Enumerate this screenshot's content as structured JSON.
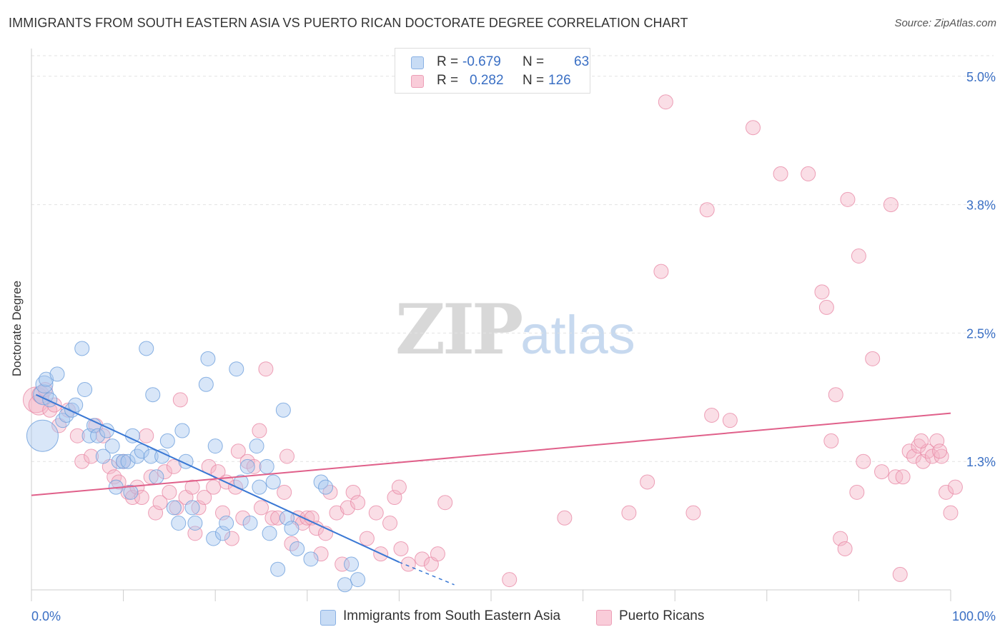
{
  "header": {
    "title": "IMMIGRANTS FROM SOUTH EASTERN ASIA VS PUERTO RICAN DOCTORATE DEGREE CORRELATION CHART",
    "source": "Source: ZipAtlas.com"
  },
  "watermark": {
    "zip": "ZIP",
    "atlas": "atlas"
  },
  "legend": {
    "rows": [
      {
        "r_label": "R =",
        "r_value": "-0.679",
        "n_label": "N =",
        "n_value": "63",
        "color": "#a9c8f0"
      },
      {
        "r_label": "R =",
        "r_value": "0.282",
        "n_label": "N =",
        "n_value": "126",
        "color": "#f5b6c8"
      }
    ]
  },
  "bottom_legend": {
    "series_a": "Immigrants from South Eastern Asia",
    "series_b": "Puerto Ricans"
  },
  "chart_data": {
    "type": "scatter",
    "ylabel": "Doctorate Degree",
    "xlim": [
      0,
      100
    ],
    "ylim": [
      0,
      5.2
    ],
    "x_tick_labels": [
      {
        "value": 0,
        "label": "0.0%"
      },
      {
        "value": 100,
        "label": "100.0%"
      }
    ],
    "y_tick_labels": [
      {
        "value": 1.25,
        "label": "1.3%"
      },
      {
        "value": 2.5,
        "label": "2.5%"
      },
      {
        "value": 3.75,
        "label": "3.8%"
      },
      {
        "value": 5.0,
        "label": "5.0%"
      }
    ],
    "grid": true,
    "colors": {
      "blue_fill": "#a9c8f0",
      "blue_stroke": "#6d9fdc",
      "blue_line": "#3a78d4",
      "pink_fill": "#f5b6c8",
      "pink_stroke": "#e88aa6",
      "pink_line": "#e0608a",
      "axis_text": "#3a6fc4"
    },
    "series": [
      {
        "name": "Immigrants from South Eastern Asia",
        "color": "#a9c8f0",
        "points": [
          [
            1.2,
            1.5,
            22
          ],
          [
            1.3,
            1.9,
            14
          ],
          [
            1.4,
            2.0,
            12
          ],
          [
            1.6,
            2.05,
            10
          ],
          [
            2.0,
            1.85,
            10
          ],
          [
            2.8,
            2.1,
            10
          ],
          [
            3.4,
            1.65,
            10
          ],
          [
            3.8,
            1.7,
            10
          ],
          [
            4.4,
            1.75,
            10
          ],
          [
            4.8,
            1.8,
            10
          ],
          [
            5.5,
            2.35,
            10
          ],
          [
            5.8,
            1.95,
            10
          ],
          [
            6.3,
            1.5,
            10
          ],
          [
            6.8,
            1.6,
            10
          ],
          [
            7.2,
            1.5,
            10
          ],
          [
            7.8,
            1.3,
            10
          ],
          [
            8.2,
            1.55,
            10
          ],
          [
            8.8,
            1.4,
            10
          ],
          [
            9.2,
            1.0,
            10
          ],
          [
            9.5,
            1.25,
            10
          ],
          [
            10.0,
            1.25,
            10
          ],
          [
            10.5,
            1.25,
            10
          ],
          [
            10.8,
            0.95,
            10
          ],
          [
            11.0,
            1.5,
            10
          ],
          [
            11.5,
            1.3,
            10
          ],
          [
            12.0,
            1.35,
            10
          ],
          [
            12.5,
            2.35,
            10
          ],
          [
            13.0,
            1.3,
            10
          ],
          [
            13.2,
            1.9,
            10
          ],
          [
            13.6,
            1.1,
            10
          ],
          [
            14.2,
            1.3,
            10
          ],
          [
            14.8,
            1.45,
            10
          ],
          [
            15.5,
            0.8,
            10
          ],
          [
            16.0,
            0.65,
            10
          ],
          [
            16.4,
            1.55,
            10
          ],
          [
            16.8,
            1.25,
            10
          ],
          [
            17.5,
            0.8,
            10
          ],
          [
            17.8,
            0.65,
            10
          ],
          [
            19.0,
            2.0,
            10
          ],
          [
            19.2,
            2.25,
            10
          ],
          [
            19.8,
            0.5,
            10
          ],
          [
            20.0,
            1.4,
            10
          ],
          [
            20.8,
            0.55,
            10
          ],
          [
            21.2,
            0.65,
            10
          ],
          [
            22.3,
            2.15,
            10
          ],
          [
            22.8,
            1.05,
            10
          ],
          [
            23.5,
            1.2,
            10
          ],
          [
            23.8,
            0.65,
            10
          ],
          [
            24.5,
            1.4,
            10
          ],
          [
            24.8,
            1.0,
            10
          ],
          [
            25.6,
            1.2,
            10
          ],
          [
            25.9,
            0.55,
            10
          ],
          [
            26.3,
            1.05,
            10
          ],
          [
            26.8,
            0.2,
            10
          ],
          [
            27.4,
            1.75,
            10
          ],
          [
            27.8,
            0.7,
            10
          ],
          [
            28.3,
            0.6,
            10
          ],
          [
            28.9,
            0.4,
            10
          ],
          [
            30.4,
            0.3,
            10
          ],
          [
            31.5,
            1.05,
            10
          ],
          [
            32.0,
            1.0,
            10
          ],
          [
            34.1,
            0.05,
            10
          ],
          [
            34.8,
            0.25,
            10
          ],
          [
            35.5,
            0.1,
            10
          ]
        ]
      },
      {
        "name": "Puerto Ricans",
        "color": "#f5b6c8",
        "points": [
          [
            0.5,
            1.85,
            18
          ],
          [
            0.8,
            1.8,
            14
          ],
          [
            1.0,
            1.9,
            12
          ],
          [
            1.5,
            1.95,
            10
          ],
          [
            2.0,
            1.75,
            10
          ],
          [
            2.5,
            1.8,
            10
          ],
          [
            3.0,
            1.6,
            10
          ],
          [
            4.0,
            1.75,
            10
          ],
          [
            5.0,
            1.5,
            10
          ],
          [
            5.5,
            1.25,
            10
          ],
          [
            6.5,
            1.3,
            10
          ],
          [
            7.0,
            1.6,
            10
          ],
          [
            7.8,
            1.5,
            10
          ],
          [
            8.5,
            1.2,
            10
          ],
          [
            9.0,
            1.1,
            10
          ],
          [
            9.5,
            1.05,
            10
          ],
          [
            10.0,
            1.25,
            10
          ],
          [
            10.5,
            0.95,
            10
          ],
          [
            11.0,
            0.9,
            10
          ],
          [
            11.5,
            1.0,
            10
          ],
          [
            12.0,
            0.9,
            10
          ],
          [
            12.5,
            1.5,
            10
          ],
          [
            13.0,
            1.1,
            10
          ],
          [
            13.5,
            0.75,
            10
          ],
          [
            14.0,
            0.85,
            10
          ],
          [
            14.5,
            1.15,
            10
          ],
          [
            15.0,
            0.95,
            10
          ],
          [
            15.5,
            1.2,
            10
          ],
          [
            15.8,
            0.8,
            10
          ],
          [
            16.2,
            1.85,
            10
          ],
          [
            16.8,
            0.9,
            10
          ],
          [
            17.5,
            1.0,
            10
          ],
          [
            17.8,
            0.55,
            10
          ],
          [
            18.2,
            0.8,
            10
          ],
          [
            18.8,
            0.9,
            10
          ],
          [
            19.3,
            1.2,
            10
          ],
          [
            19.8,
            1.0,
            10
          ],
          [
            20.3,
            1.15,
            10
          ],
          [
            20.8,
            0.75,
            10
          ],
          [
            21.2,
            1.05,
            10
          ],
          [
            21.8,
            0.5,
            10
          ],
          [
            22.2,
            1.0,
            10
          ],
          [
            22.5,
            1.35,
            10
          ],
          [
            23.0,
            0.7,
            10
          ],
          [
            23.5,
            1.25,
            10
          ],
          [
            24.2,
            1.2,
            10
          ],
          [
            24.8,
            1.55,
            10
          ],
          [
            25.0,
            0.8,
            10
          ],
          [
            25.5,
            2.15,
            10
          ],
          [
            26.2,
            0.7,
            10
          ],
          [
            26.8,
            0.7,
            10
          ],
          [
            27.5,
            0.95,
            10
          ],
          [
            27.8,
            1.3,
            10
          ],
          [
            28.3,
            0.45,
            10
          ],
          [
            29.0,
            0.7,
            10
          ],
          [
            29.5,
            0.65,
            10
          ],
          [
            30.0,
            0.7,
            10
          ],
          [
            30.5,
            0.7,
            10
          ],
          [
            31.0,
            0.6,
            10
          ],
          [
            31.5,
            0.35,
            10
          ],
          [
            32.0,
            0.55,
            10
          ],
          [
            32.5,
            0.95,
            10
          ],
          [
            33.2,
            0.75,
            10
          ],
          [
            33.8,
            0.25,
            10
          ],
          [
            34.4,
            0.8,
            10
          ],
          [
            35.0,
            0.95,
            10
          ],
          [
            35.5,
            0.85,
            10
          ],
          [
            36.5,
            0.5,
            10
          ],
          [
            37.5,
            0.75,
            10
          ],
          [
            38.0,
            0.35,
            10
          ],
          [
            39.0,
            0.65,
            10
          ],
          [
            39.5,
            0.9,
            10
          ],
          [
            40.0,
            1.0,
            10
          ],
          [
            40.2,
            0.4,
            10
          ],
          [
            41.0,
            0.25,
            10
          ],
          [
            42.5,
            0.3,
            10
          ],
          [
            43.5,
            0.25,
            10
          ],
          [
            44.2,
            0.35,
            10
          ],
          [
            45.0,
            0.85,
            10
          ],
          [
            52.0,
            0.1,
            10
          ],
          [
            58.0,
            0.7,
            10
          ],
          [
            65.0,
            0.75,
            10
          ],
          [
            67.0,
            1.05,
            10
          ],
          [
            68.5,
            3.1,
            10
          ],
          [
            69.0,
            4.75,
            10
          ],
          [
            72.0,
            0.75,
            10
          ],
          [
            73.5,
            3.7,
            10
          ],
          [
            74.0,
            1.7,
            10
          ],
          [
            76.0,
            1.65,
            10
          ],
          [
            78.5,
            4.5,
            10
          ],
          [
            81.5,
            4.05,
            10
          ],
          [
            84.5,
            4.05,
            10
          ],
          [
            86.0,
            2.9,
            10
          ],
          [
            86.5,
            2.75,
            10
          ],
          [
            87.0,
            1.45,
            10
          ],
          [
            87.5,
            1.9,
            10
          ],
          [
            88.0,
            0.5,
            10
          ],
          [
            88.5,
            0.4,
            10
          ],
          [
            88.8,
            3.8,
            10
          ],
          [
            89.8,
            0.95,
            10
          ],
          [
            90.0,
            3.25,
            10
          ],
          [
            90.5,
            1.25,
            10
          ],
          [
            91.5,
            2.25,
            10
          ],
          [
            92.5,
            1.15,
            10
          ],
          [
            93.5,
            3.75,
            10
          ],
          [
            94.0,
            1.1,
            10
          ],
          [
            94.5,
            0.15,
            10
          ],
          [
            95.5,
            1.35,
            10
          ],
          [
            96.0,
            1.3,
            10
          ],
          [
            96.5,
            1.4,
            10
          ],
          [
            97.0,
            1.25,
            10
          ],
          [
            97.5,
            1.35,
            10
          ],
          [
            98.0,
            1.3,
            10
          ],
          [
            98.5,
            1.45,
            10
          ],
          [
            99.0,
            1.3,
            10
          ],
          [
            99.5,
            0.95,
            10
          ],
          [
            100.0,
            0.75,
            10
          ],
          [
            100.5,
            1.0,
            10
          ],
          [
            94.8,
            1.1,
            10
          ],
          [
            96.8,
            1.45,
            10
          ],
          [
            98.8,
            1.35,
            10
          ]
        ]
      }
    ],
    "trend_lines": [
      {
        "series": "Immigrants from South Eastern Asia",
        "x": [
          0.5,
          40
        ],
        "y": [
          1.9,
          0.27
        ],
        "dashed_to": [
          46,
          0.05
        ]
      },
      {
        "series": "Puerto Ricans",
        "x": [
          0,
          100
        ],
        "y": [
          0.92,
          1.72
        ]
      }
    ]
  }
}
